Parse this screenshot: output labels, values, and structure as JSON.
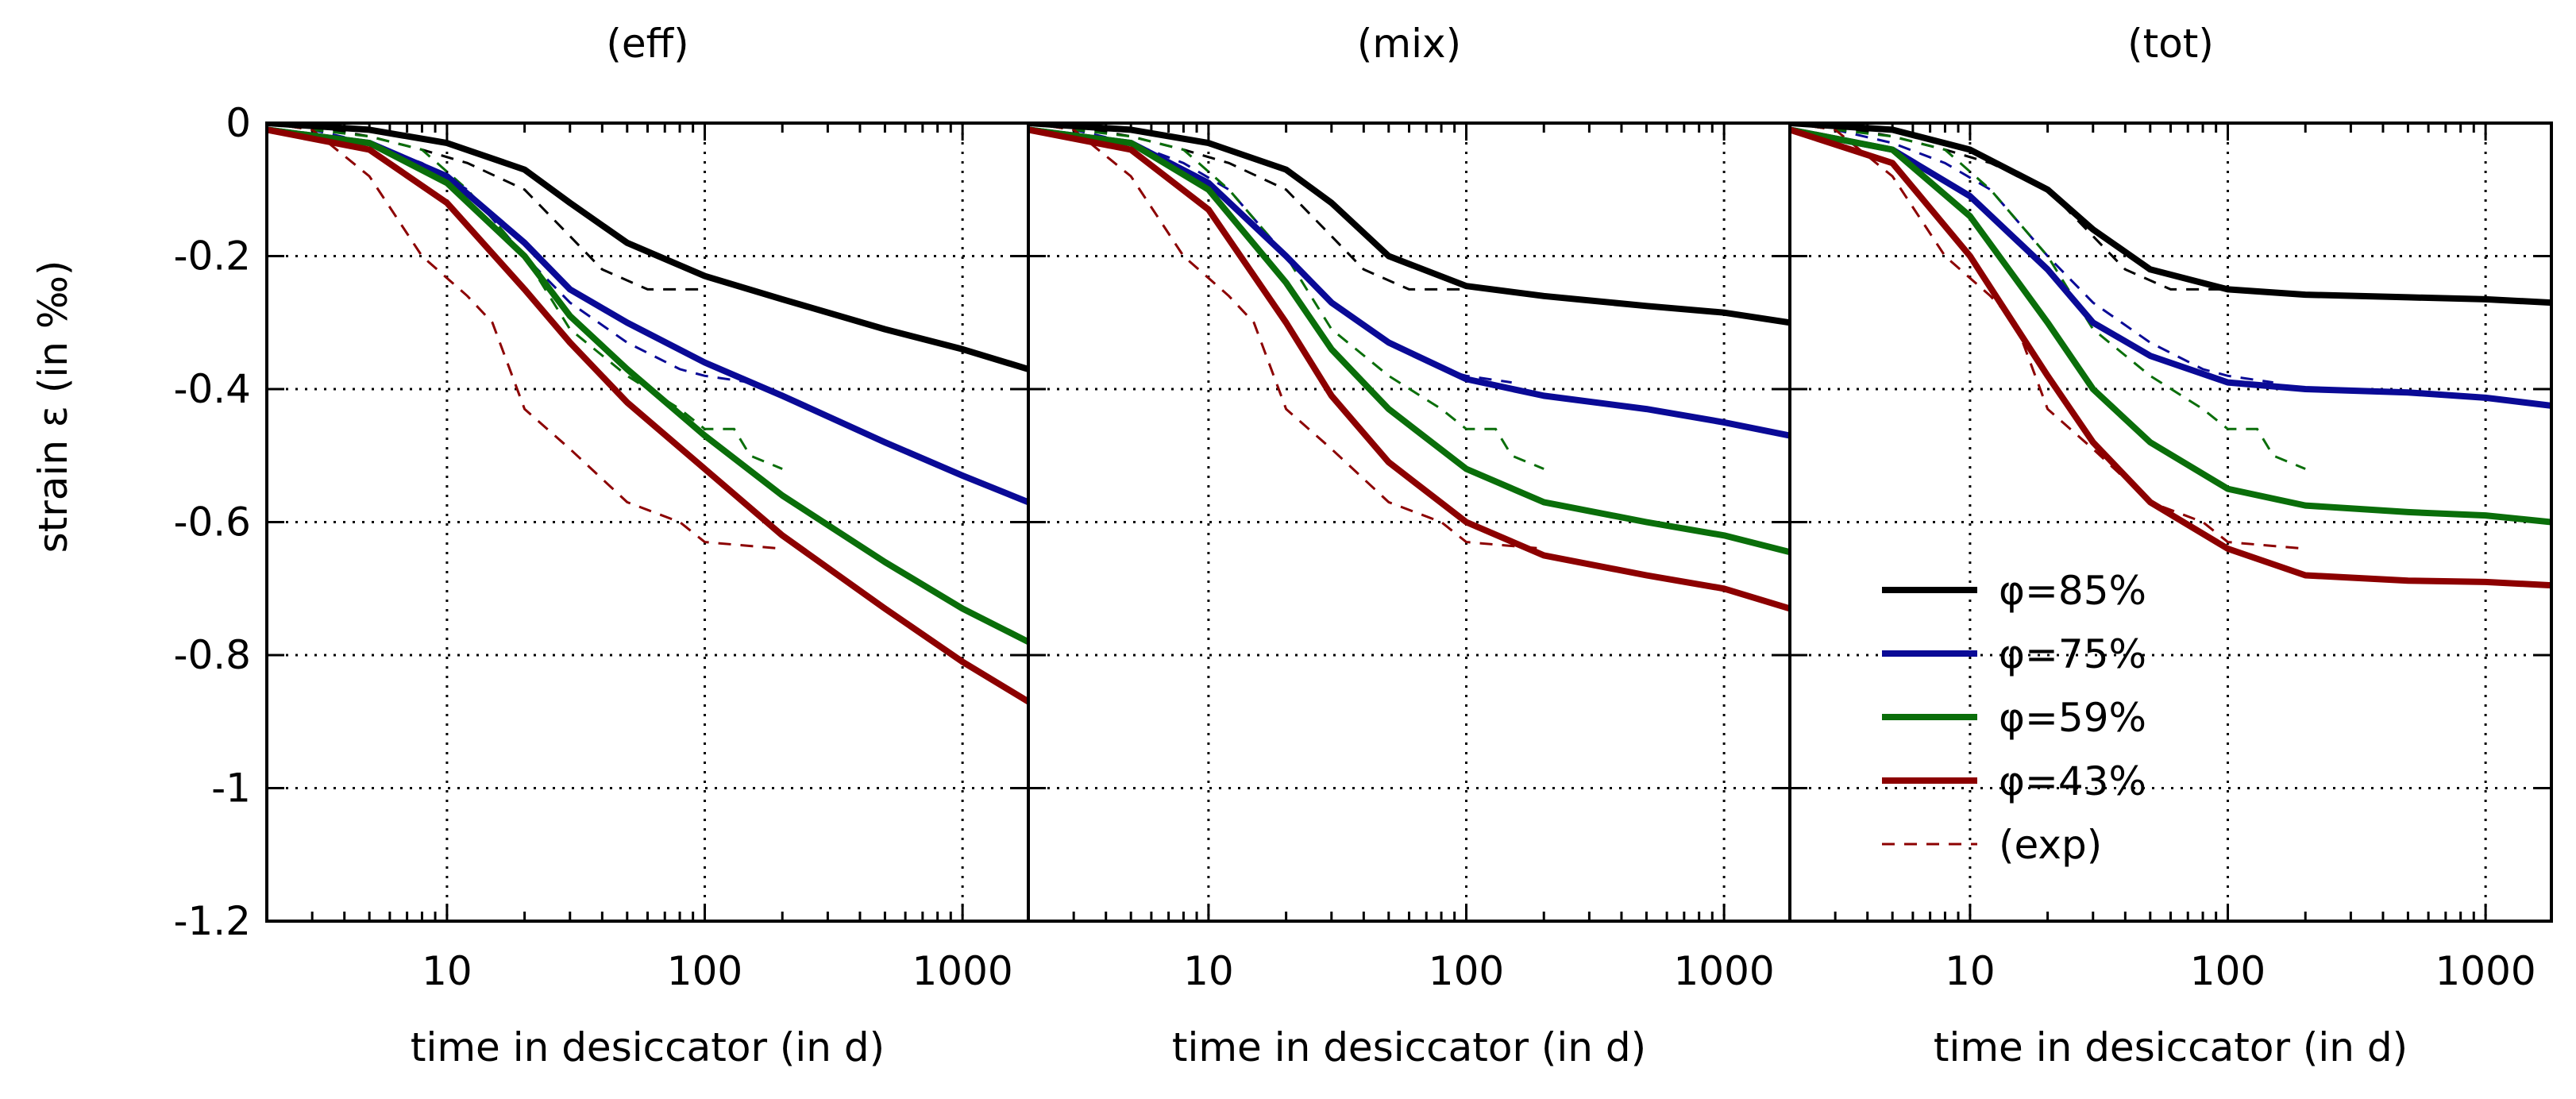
{
  "chart_data": {
    "type": "line",
    "xscale": "log",
    "xlim": [
      2,
      1800
    ],
    "ylim": [
      -1.2,
      0
    ],
    "grid": true,
    "ylabel": "strain ε (in ‰)",
    "xlabel": "time in desiccator (in d)",
    "x_ticks": [
      {
        "value": 10,
        "label": "10"
      },
      {
        "value": 100,
        "label": "100"
      },
      {
        "value": 1000,
        "label": "1000"
      }
    ],
    "y_ticks": [
      {
        "value": 0,
        "label": "0"
      },
      {
        "value": -0.2,
        "label": "-0.2"
      },
      {
        "value": -0.4,
        "label": "-0.4"
      },
      {
        "value": -0.6,
        "label": "-0.6"
      },
      {
        "value": -0.8,
        "label": "-0.8"
      },
      {
        "value": -1,
        "label": "-1"
      },
      {
        "value": -1.2,
        "label": "-1.2"
      }
    ],
    "colors": {
      "phi85": "#000000",
      "phi75": "#0a0a96",
      "phi59": "#0a6e0a",
      "phi43": "#8c0000"
    },
    "legend": {
      "placement": "bottom-right of third panel",
      "entries": [
        {
          "key": "phi85",
          "label": "φ=85%",
          "style": "solid"
        },
        {
          "key": "phi75",
          "label": "φ=75%",
          "style": "solid"
        },
        {
          "key": "phi59",
          "label": "φ=59%",
          "style": "solid"
        },
        {
          "key": "phi43",
          "label": "φ=43%",
          "style": "solid"
        },
        {
          "key": "phi43",
          "label": "(exp)",
          "style": "dashed"
        }
      ]
    },
    "experimental": [
      {
        "key": "phi85",
        "x": [
          2,
          3,
          5,
          8,
          12,
          20,
          30,
          40,
          60,
          100
        ],
        "y": [
          0,
          -0.005,
          -0.02,
          -0.04,
          -0.06,
          -0.1,
          -0.17,
          -0.22,
          -0.25,
          -0.25
        ]
      },
      {
        "key": "phi75",
        "x": [
          2,
          3,
          5,
          8,
          12,
          20,
          30,
          50,
          80,
          100,
          150
        ],
        "y": [
          0,
          -0.01,
          -0.03,
          -0.06,
          -0.1,
          -0.2,
          -0.27,
          -0.33,
          -0.37,
          -0.38,
          -0.39
        ]
      },
      {
        "key": "phi59",
        "x": [
          2,
          3,
          5,
          8,
          12,
          20,
          30,
          50,
          80,
          100,
          130,
          150,
          200
        ],
        "y": [
          0,
          -0.01,
          -0.02,
          -0.04,
          -0.1,
          -0.2,
          -0.31,
          -0.38,
          -0.43,
          -0.46,
          -0.46,
          -0.5,
          -0.52
        ]
      },
      {
        "key": "phi43",
        "x": [
          2,
          3,
          5,
          8,
          12,
          15,
          20,
          30,
          50,
          80,
          100,
          200
        ],
        "y": [
          0,
          -0.01,
          -0.08,
          -0.2,
          -0.26,
          -0.3,
          -0.43,
          -0.49,
          -0.57,
          -0.6,
          -0.63,
          -0.64
        ]
      }
    ],
    "panels": [
      {
        "title": "(eff)",
        "series": [
          {
            "key": "phi85",
            "name": "φ=85%",
            "x": [
              2,
              5,
              10,
              20,
              30,
              50,
              100,
              200,
              500,
              1000,
              1800
            ],
            "y": [
              0,
              -0.01,
              -0.03,
              -0.07,
              -0.12,
              -0.18,
              -0.23,
              -0.265,
              -0.31,
              -0.34,
              -0.37
            ]
          },
          {
            "key": "phi75",
            "name": "φ=75%",
            "x": [
              2,
              5,
              10,
              20,
              30,
              50,
              100,
              200,
              500,
              1000,
              1800
            ],
            "y": [
              -0.01,
              -0.03,
              -0.08,
              -0.18,
              -0.25,
              -0.3,
              -0.36,
              -0.41,
              -0.48,
              -0.53,
              -0.57
            ]
          },
          {
            "key": "phi59",
            "name": "φ=59%",
            "x": [
              2,
              5,
              10,
              20,
              30,
              50,
              100,
              200,
              500,
              1000,
              1800
            ],
            "y": [
              -0.01,
              -0.03,
              -0.09,
              -0.2,
              -0.29,
              -0.37,
              -0.47,
              -0.56,
              -0.66,
              -0.73,
              -0.78
            ]
          },
          {
            "key": "phi43",
            "name": "φ=43%",
            "x": [
              2,
              5,
              10,
              20,
              30,
              50,
              100,
              200,
              500,
              1000,
              1800
            ],
            "y": [
              -0.01,
              -0.04,
              -0.12,
              -0.25,
              -0.33,
              -0.42,
              -0.52,
              -0.62,
              -0.73,
              -0.81,
              -0.87
            ]
          }
        ]
      },
      {
        "title": "(mix)",
        "series": [
          {
            "key": "phi85",
            "name": "φ=85%",
            "x": [
              2,
              5,
              10,
              20,
              30,
              50,
              100,
              200,
              500,
              1000,
              1800
            ],
            "y": [
              0,
              -0.01,
              -0.03,
              -0.07,
              -0.12,
              -0.2,
              -0.245,
              -0.26,
              -0.275,
              -0.285,
              -0.3
            ]
          },
          {
            "key": "phi75",
            "name": "φ=75%",
            "x": [
              2,
              5,
              10,
              20,
              30,
              50,
              100,
              200,
              500,
              1000,
              1800
            ],
            "y": [
              -0.01,
              -0.03,
              -0.09,
              -0.2,
              -0.27,
              -0.33,
              -0.385,
              -0.41,
              -0.43,
              -0.45,
              -0.47
            ]
          },
          {
            "key": "phi59",
            "name": "φ=59%",
            "x": [
              2,
              5,
              10,
              20,
              30,
              50,
              100,
              200,
              500,
              1000,
              1800
            ],
            "y": [
              -0.01,
              -0.03,
              -0.1,
              -0.24,
              -0.34,
              -0.43,
              -0.52,
              -0.57,
              -0.6,
              -0.62,
              -0.645
            ]
          },
          {
            "key": "phi43",
            "name": "φ=43%",
            "x": [
              2,
              5,
              10,
              20,
              30,
              50,
              100,
              200,
              500,
              1000,
              1800
            ],
            "y": [
              -0.01,
              -0.04,
              -0.13,
              -0.3,
              -0.41,
              -0.51,
              -0.6,
              -0.65,
              -0.68,
              -0.7,
              -0.73
            ]
          }
        ]
      },
      {
        "title": "(tot)",
        "series": [
          {
            "key": "phi85",
            "name": "φ=85%",
            "x": [
              2,
              5,
              10,
              20,
              30,
              50,
              100,
              200,
              500,
              1000,
              1800
            ],
            "y": [
              0,
              -0.01,
              -0.04,
              -0.1,
              -0.16,
              -0.22,
              -0.25,
              -0.258,
              -0.262,
              -0.265,
              -0.27
            ]
          },
          {
            "key": "phi75",
            "name": "φ=75%",
            "x": [
              2,
              5,
              10,
              20,
              30,
              50,
              100,
              200,
              500,
              1000,
              1800
            ],
            "y": [
              -0.01,
              -0.04,
              -0.11,
              -0.22,
              -0.3,
              -0.35,
              -0.39,
              -0.4,
              -0.405,
              -0.413,
              -0.425
            ]
          },
          {
            "key": "phi59",
            "name": "φ=59%",
            "x": [
              2,
              5,
              10,
              20,
              30,
              50,
              100,
              200,
              500,
              1000,
              1800
            ],
            "y": [
              -0.01,
              -0.04,
              -0.14,
              -0.3,
              -0.4,
              -0.48,
              -0.55,
              -0.575,
              -0.585,
              -0.59,
              -0.6
            ]
          },
          {
            "key": "phi43",
            "name": "φ=43%",
            "x": [
              2,
              5,
              10,
              20,
              30,
              50,
              100,
              200,
              500,
              1000,
              1800
            ],
            "y": [
              -0.01,
              -0.06,
              -0.2,
              -0.38,
              -0.48,
              -0.57,
              -0.64,
              -0.68,
              -0.688,
              -0.69,
              -0.695
            ]
          }
        ]
      }
    ]
  }
}
